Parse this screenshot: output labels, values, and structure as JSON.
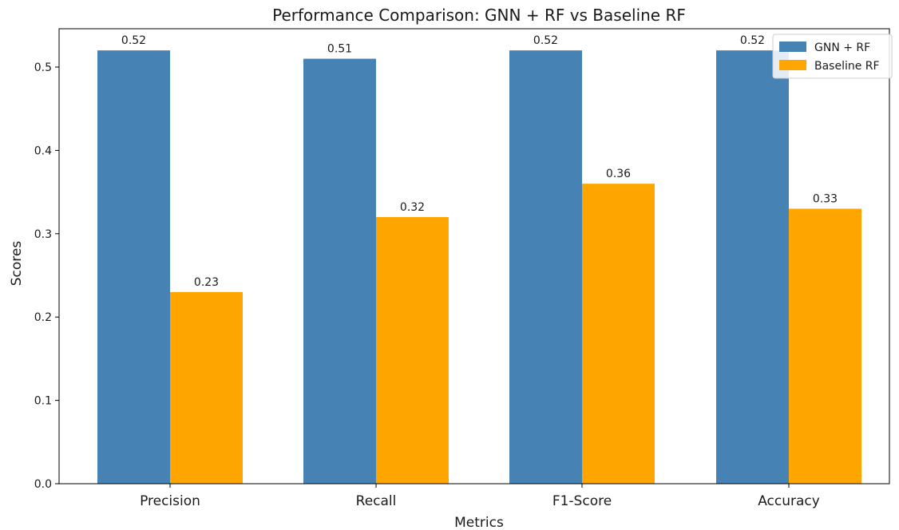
{
  "chart_data": {
    "type": "bar",
    "title": "Performance Comparison: GNN + RF vs Baseline RF",
    "xlabel": "Metrics",
    "ylabel": "Scores",
    "categories": [
      "Precision",
      "Recall",
      "F1-Score",
      "Accuracy"
    ],
    "series": [
      {
        "name": "GNN + RF",
        "values": [
          0.52,
          0.51,
          0.52,
          0.52
        ],
        "color": "#4682b4"
      },
      {
        "name": "Baseline RF",
        "values": [
          0.23,
          0.32,
          0.36,
          0.33
        ],
        "color": "#ffa500"
      }
    ],
    "data_labels": [
      [
        "0.52",
        "0.51",
        "0.52",
        "0.52"
      ],
      [
        "0.23",
        "0.32",
        "0.36",
        "0.33"
      ]
    ],
    "yticks": [
      0.0,
      0.1,
      0.2,
      0.3,
      0.4,
      0.5
    ],
    "ytick_labels": [
      "0.0",
      "0.1",
      "0.2",
      "0.3",
      "0.4",
      "0.5"
    ],
    "ylim": [
      0,
      0.546
    ],
    "grid": false,
    "legend_position": "top-right"
  }
}
